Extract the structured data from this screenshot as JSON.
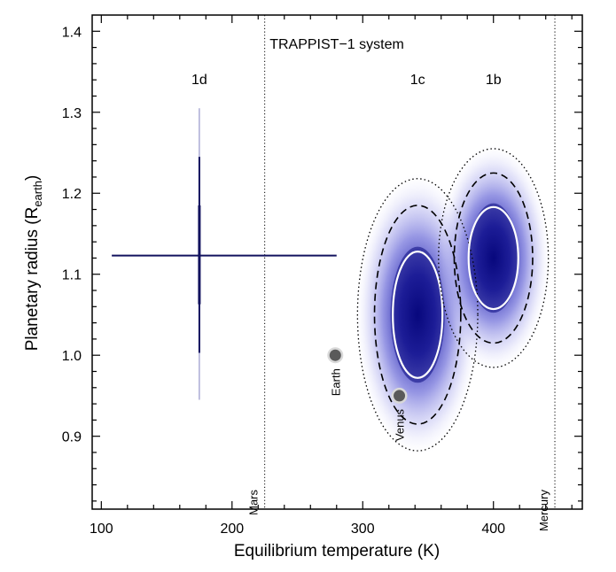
{
  "chart_data": {
    "type": "scatter",
    "title": "TRAPPIST−1 system",
    "xlabel": "Equilibrium temperature (K)",
    "ylabel_main": "Planetary radius (R",
    "ylabel_sub": "earth",
    "ylabel_close": ")",
    "xlim": [
      93,
      468
    ],
    "ylim": [
      0.81,
      1.42
    ],
    "xticks": [
      100,
      200,
      300,
      400
    ],
    "yticks": [
      0.9,
      1.0,
      1.1,
      1.2,
      1.3,
      1.4
    ],
    "xtick_labels": [
      "100",
      "200",
      "300",
      "400"
    ],
    "ytick_labels": [
      "0.9",
      "1.0",
      "1.1",
      "1.2",
      "1.3",
      "1.4"
    ],
    "grid": false,
    "reference_lines": [
      {
        "name": "Mars",
        "x": 225
      },
      {
        "name": "Mercury",
        "x": 447
      }
    ],
    "planets": [
      {
        "name": "1d",
        "type": "errorbar",
        "x": 175,
        "y": 1.123,
        "x_range": [
          108,
          280
        ],
        "y_range": [
          0.945,
          1.305
        ],
        "y_range_inner": [
          1.003,
          1.245
        ],
        "y_range_core": [
          1.063,
          1.185
        ]
      },
      {
        "name": "1c",
        "type": "density",
        "x": 342,
        "y": 1.05,
        "contours": [
          {
            "level": "inner",
            "style": "solid",
            "sx": 19,
            "sy": 0.078
          },
          {
            "level": "middle",
            "style": "dashed",
            "sx": 33,
            "sy": 0.135
          },
          {
            "level": "outer",
            "style": "dotted",
            "sx": 46,
            "sy": 0.168
          }
        ]
      },
      {
        "name": "1b",
        "type": "density",
        "x": 400,
        "y": 1.12,
        "contours": [
          {
            "level": "inner",
            "style": "solid",
            "sx": 19,
            "sy": 0.063
          },
          {
            "level": "middle",
            "style": "dashed",
            "sx": 30,
            "sy": 0.105
          },
          {
            "level": "outer",
            "style": "dotted",
            "sx": 42,
            "sy": 0.135
          }
        ]
      }
    ],
    "reference_planets": [
      {
        "name": "Earth",
        "x": 279,
        "y": 1.0
      },
      {
        "name": "Venus",
        "x": 328,
        "y": 0.95
      }
    ],
    "colors": {
      "errorbar": "#12125e",
      "density": "#1f1fa0",
      "contour_inner": "#ffffff",
      "contour_outer": "#000000",
      "reference_planet": "#5a5a5a"
    }
  }
}
